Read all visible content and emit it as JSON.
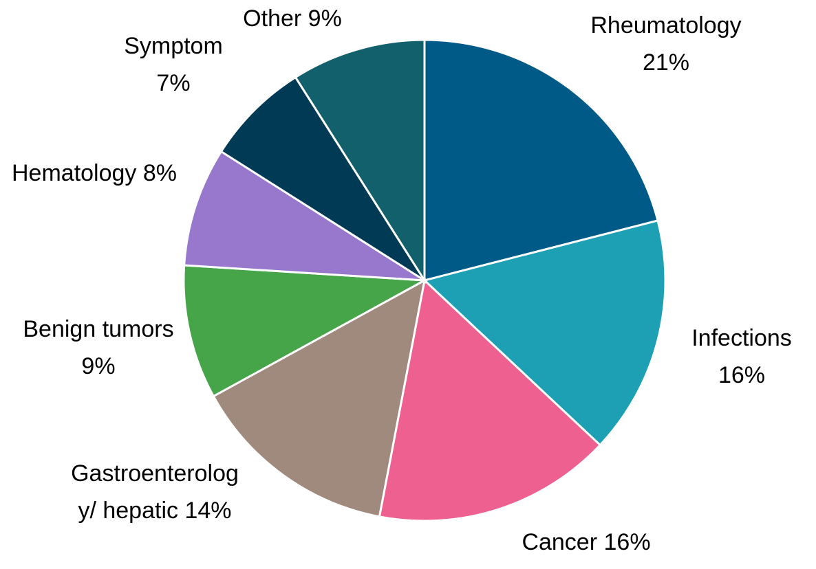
{
  "chart_data": {
    "type": "pie",
    "categories": [
      "Rheumatology",
      "Infections",
      "Cancer",
      "Gastroenterology/ hepatic",
      "Benign tumors",
      "Hematology",
      "Symptom",
      "Other"
    ],
    "values": [
      21,
      16,
      16,
      14,
      9,
      8,
      7,
      9
    ],
    "value_labels": [
      "21%",
      "16%",
      "16%",
      "14%",
      "9%",
      "8%",
      "7%",
      "9%"
    ],
    "colors": [
      "#005a87",
      "#1da0b3",
      "#ee6090",
      "#a08a7e",
      "#45a548",
      "#9778cc",
      "#003a55",
      "#12606c"
    ]
  }
}
